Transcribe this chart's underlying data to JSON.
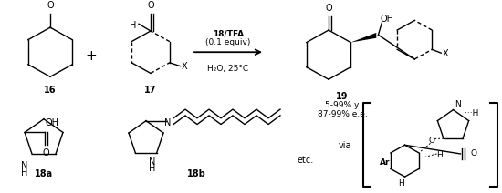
{
  "bg_color": "#ffffff",
  "fig_width": 5.5,
  "fig_height": 2.12,
  "dpi": 100,
  "reaction_conditions_bold": "18/TFA",
  "reaction_conditions2": "(0.1 equiv)",
  "reaction_solvent": "H₂O, 25°C",
  "compound16": "16",
  "compound17": "17",
  "compound19": "19",
  "compound18a": "18a",
  "compound18b": "18b",
  "yield_text": "5-99% y.",
  "ee_text": "87-99% e.e.",
  "via_text": "via",
  "etc_text": "etc."
}
